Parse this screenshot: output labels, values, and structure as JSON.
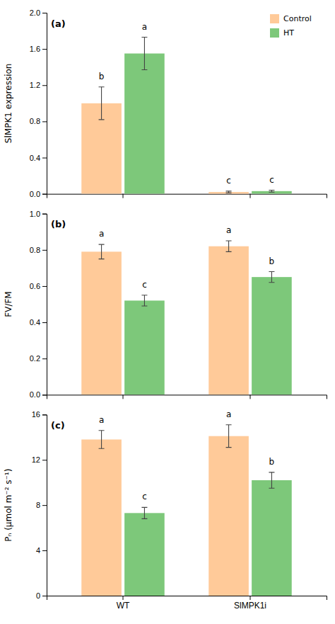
{
  "chart_data": [
    {
      "type": "bar",
      "title": "(a)",
      "y_label": "SlMPK1 expression",
      "categories": [
        null,
        null
      ],
      "series": [
        {
          "name": "Control",
          "color": "#FFCA99",
          "values": [
            1.0,
            0.02
          ],
          "errors": [
            0.18,
            0.01
          ],
          "annotations": [
            "b",
            "c"
          ]
        },
        {
          "name": "HT",
          "color": "#7DC87A",
          "values": [
            1.55,
            0.03
          ],
          "errors": [
            0.18,
            0.01
          ],
          "annotations": [
            "a",
            "c"
          ]
        }
      ],
      "ylim": [
        0,
        2.0
      ],
      "yticks": [
        {
          "value": 0.0,
          "label": "0.0"
        },
        0.4,
        0.8,
        1.2,
        1.6,
        {
          "value": 2.0,
          "label": "2.0"
        }
      ],
      "legend": "upper right"
    },
    {
      "type": "bar",
      "title": "(b)",
      "y_label": "FV/FM",
      "categories": [
        null,
        null
      ],
      "series": [
        {
          "name": "Control",
          "color": "#FFCA99",
          "values": [
            0.79,
            0.82
          ],
          "errors": [
            0.04,
            0.03
          ],
          "annotations": [
            "a",
            "a"
          ]
        },
        {
          "name": "HT",
          "color": "#7DC87A",
          "values": [
            0.52,
            0.65
          ],
          "errors": [
            0.03,
            0.03
          ],
          "annotations": [
            "c",
            "b"
          ]
        }
      ],
      "ylim": [
        0,
        1.0
      ],
      "yticks": [
        {
          "value": 0.0,
          "label": "0.0"
        },
        0.2,
        0.4,
        0.6,
        0.8,
        {
          "value": 1.0,
          "label": "1.0"
        }
      ]
    },
    {
      "type": "bar",
      "title": "(c)",
      "y_label": "Pₙ (μmol m⁻² s⁻¹)",
      "categories": [
        "WT",
        "SlMPK1i"
      ],
      "series": [
        {
          "name": "Control",
          "color": "#FFCA99",
          "values": [
            13.8,
            14.1
          ],
          "errors": [
            0.8,
            1.0
          ],
          "annotations": [
            "a",
            "a"
          ]
        },
        {
          "name": "HT",
          "color": "#7DC87A",
          "values": [
            7.3,
            10.2
          ],
          "errors": [
            0.5,
            0.7
          ],
          "annotations": [
            "c",
            "b"
          ]
        }
      ],
      "ylim": [
        0,
        16
      ],
      "yticks": [
        0,
        4,
        8,
        12,
        16
      ]
    }
  ]
}
